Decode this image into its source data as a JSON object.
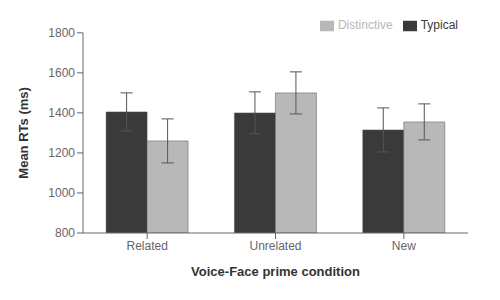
{
  "chart_data": {
    "type": "bar",
    "categories": [
      "Related",
      "Unrelated",
      "New"
    ],
    "series": [
      {
        "name": "Typical",
        "color": "#3a3a3a",
        "values": [
          1405,
          1400,
          1315
        ],
        "errors": [
          95,
          105,
          110
        ]
      },
      {
        "name": "Distinctive",
        "color": "#b8b8b8",
        "values": [
          1260,
          1500,
          1355
        ],
        "errors": [
          110,
          105,
          90
        ]
      }
    ],
    "xlabel": "Voice-Face prime condition",
    "ylabel": "Mean RTs (ms)",
    "ylim": [
      800,
      1800
    ],
    "yticks": [
      800,
      1000,
      1200,
      1400,
      1600,
      1800
    ],
    "grid": false,
    "legend": "upper right"
  }
}
